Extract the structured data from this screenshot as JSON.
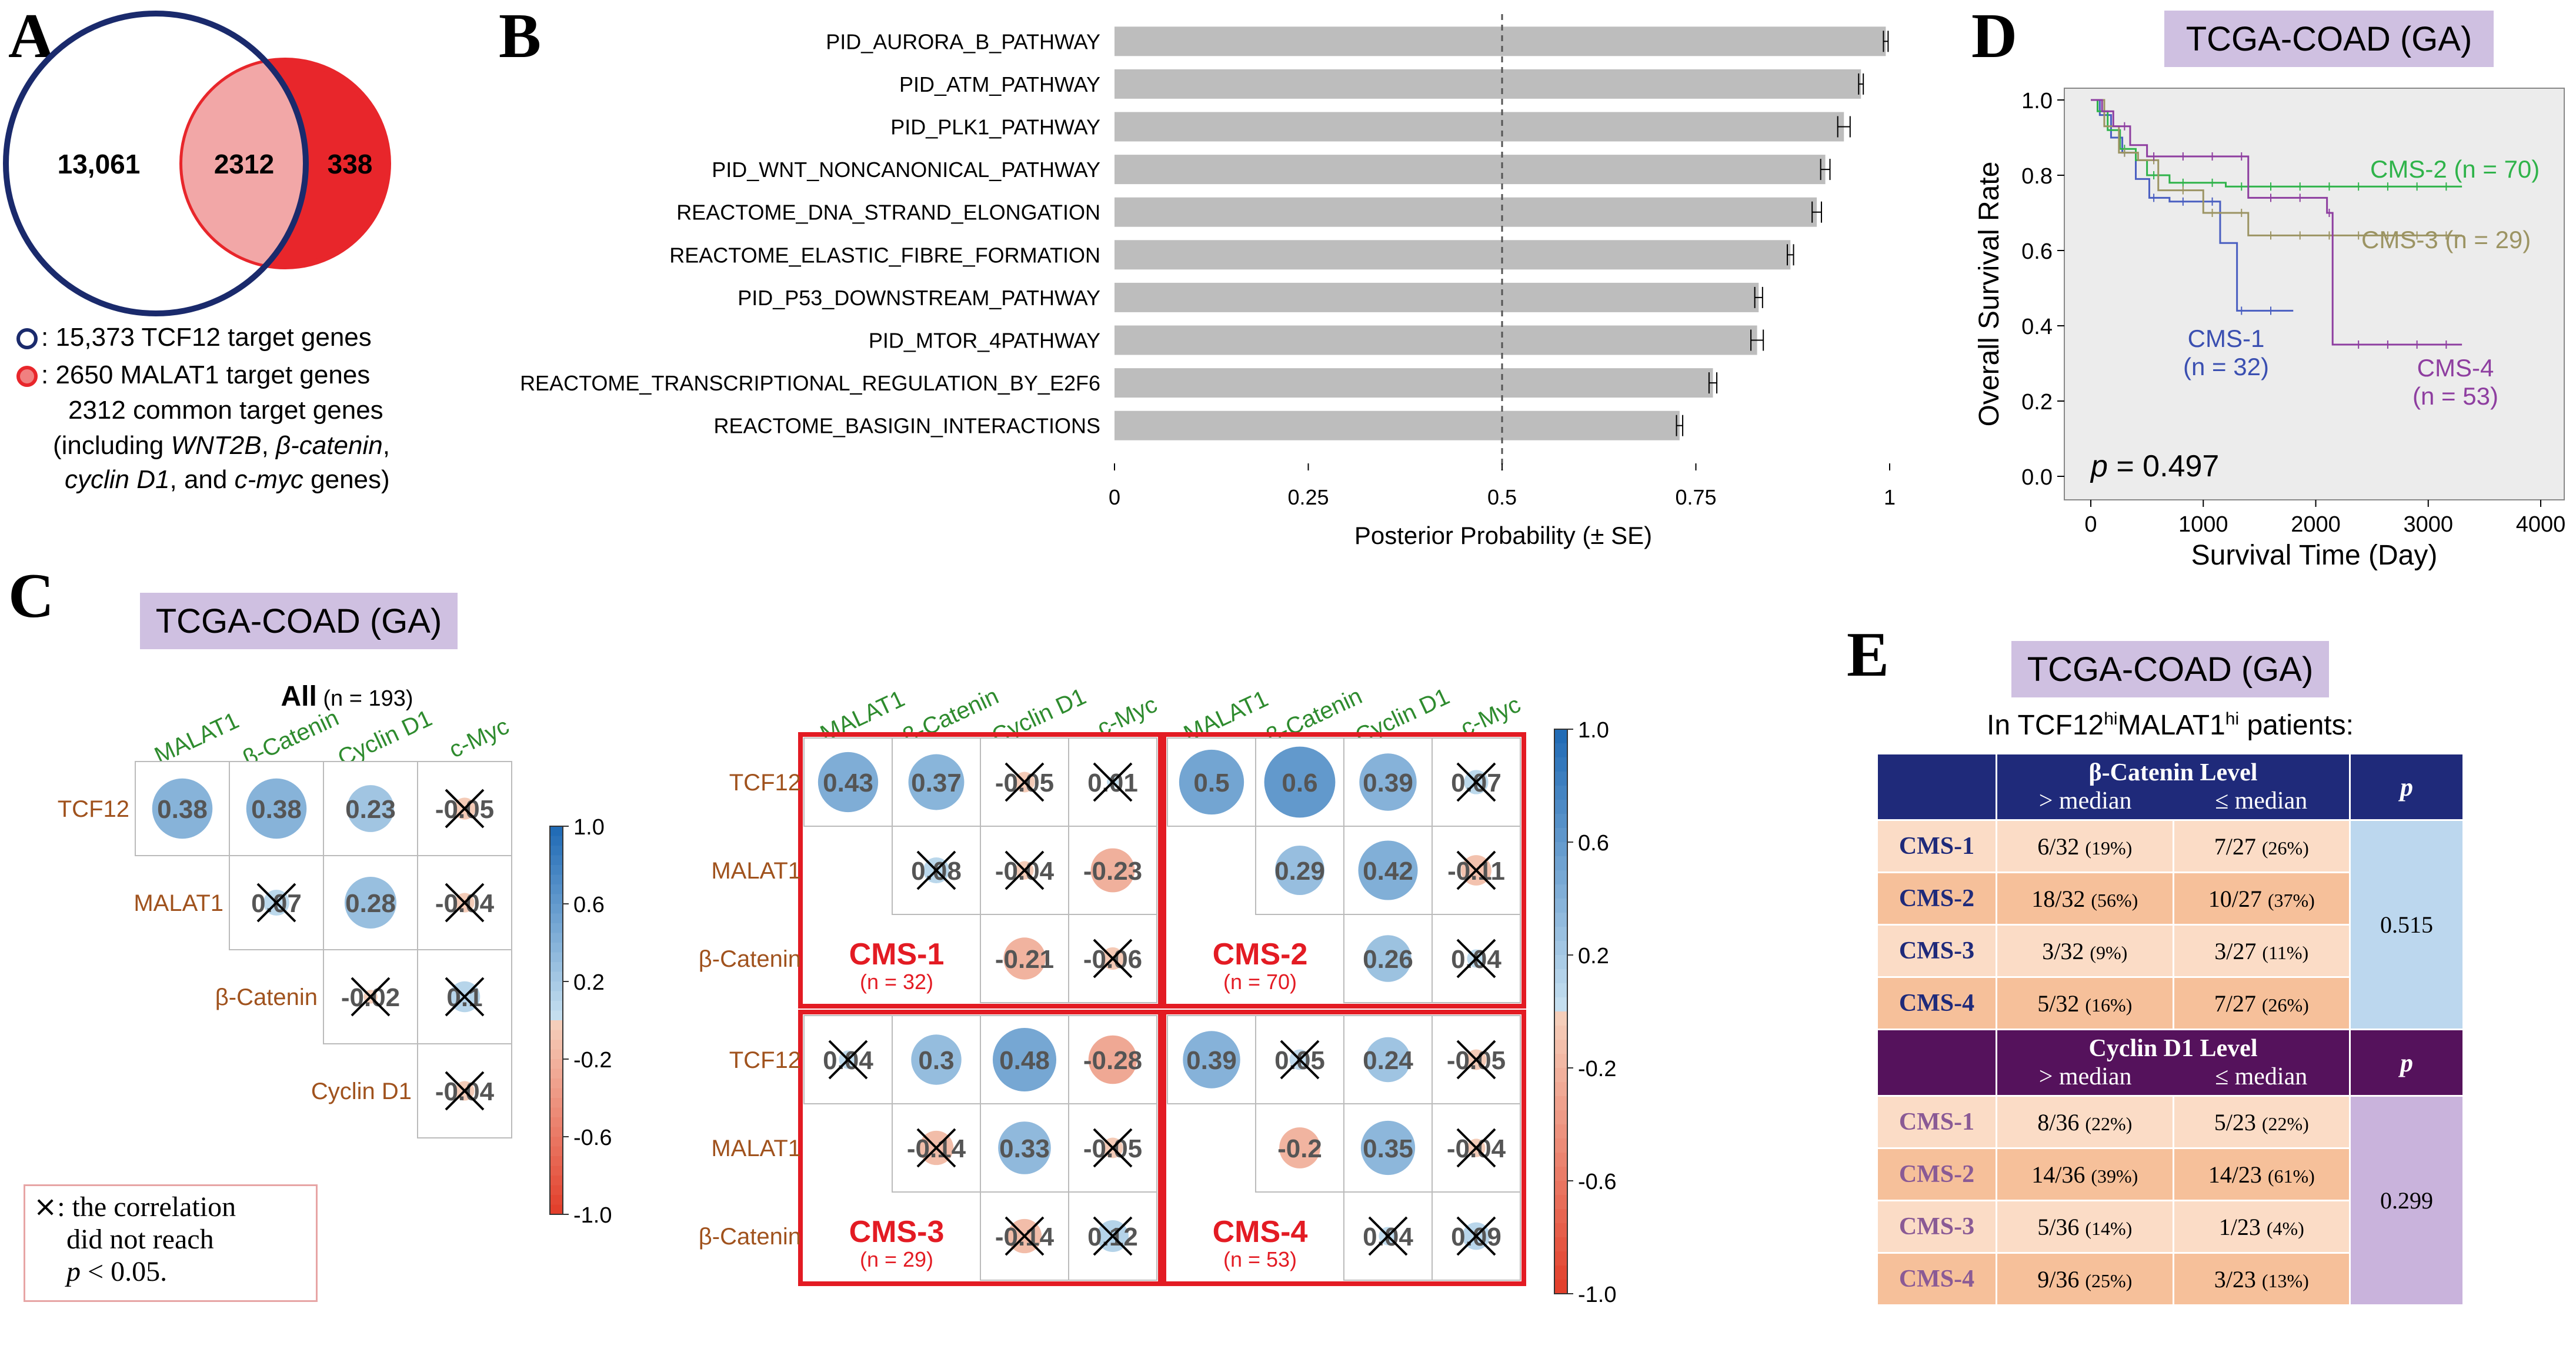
{
  "panels": {
    "a": "A",
    "b": "B",
    "c": "C",
    "d": "D",
    "e": "E"
  },
  "venn": {
    "left_only": "13,061",
    "overlap": "2312",
    "right_only": "338",
    "legend_tcf12": ": 15,373 TCF12 target genes",
    "legend_malat1": ": 2650 MALAT1 target genes",
    "common_line1": "2312 common target genes",
    "common_line2_a": "(including ",
    "common_line2_b": "WNT2B",
    "common_line2_c": ", ",
    "common_line2_d": "β-catenin",
    "common_line2_e": ",",
    "common_line3_a": "cyclin D1",
    "common_line3_b": ", and ",
    "common_line3_c": "c-myc",
    "common_line3_d": " genes)",
    "colors": {
      "tcf12": "#1a2a6c",
      "malat1": "#e8262b",
      "overlap": "#f2a7a7"
    }
  },
  "chart_data": {
    "type": "bar",
    "orientation": "horizontal",
    "categories": [
      "PID_AURORA_B_PATHWAY",
      "PID_ATM_PATHWAY",
      "PID_PLK1_PATHWAY",
      "PID_WNT_NONCANONICAL_PATHWAY",
      "REACTOME_DNA_STRAND_ELONGATION",
      "REACTOME_ELASTIC_FIBRE_FORMATION",
      "PID_P53_DOWNSTREAM_PATHWAY",
      "PID_MTOR_4PATHWAY",
      "REACTOME_TRANSCRIPTIONAL_REGULATION_BY_E2F6",
      "REACTOME_BASIGIN_INTERACTIONS"
    ],
    "values": [
      0.995,
      0.963,
      0.941,
      0.917,
      0.906,
      0.872,
      0.831,
      0.829,
      0.772,
      0.729
    ],
    "errors": [
      0.003,
      0.003,
      0.008,
      0.006,
      0.006,
      0.004,
      0.005,
      0.008,
      0.005,
      0.004
    ],
    "xlabel": "Posterior Probability (± SE)",
    "xlim": [
      0,
      1
    ],
    "xticks": [
      "0",
      "0.25",
      "0.5",
      "0.75",
      "1"
    ],
    "reference_line": 0.5,
    "bar_color": "#bdbdbd"
  },
  "survival": {
    "title": "TCGA-COAD (GA)",
    "ylabel": "Overall Survival Rate",
    "xlabel": "Survival Time (Day)",
    "yticks": [
      "0.0",
      "0.2",
      "0.4",
      "0.6",
      "0.8",
      "1.0"
    ],
    "xticks": [
      "0",
      "1000",
      "2000",
      "3000",
      "4000"
    ],
    "pvalue_p": "p",
    "pvalue_rest": " = 0.497",
    "groups": [
      {
        "name": "CMS-1",
        "n": "(n = 32)",
        "color": "#4a5fc1"
      },
      {
        "name": "CMS-2",
        "n": "(n = 70)",
        "color": "#2fb34a"
      },
      {
        "name": "CMS-3",
        "n": "(n = 29)",
        "color": "#9c9463"
      },
      {
        "name": "CMS-4",
        "n": "(n = 53)",
        "color": "#8e3ea0"
      }
    ]
  },
  "corr": {
    "title": "TCGA-COAD (GA)",
    "all_label": "All",
    "all_n": "(n = 193)",
    "col_labels": [
      "MALAT1",
      "β-Catenin",
      "Cyclin D1",
      "c-Myc"
    ],
    "row_labels": [
      "TCF12",
      "MALAT1",
      "β-Catenin",
      "Cyclin D1"
    ],
    "row_labels_cms": [
      "TCF12",
      "MALAT1",
      "β-Catenin"
    ],
    "all_values": [
      [
        "0.38",
        "0.38",
        "0.23",
        "-0.05"
      ],
      [
        "0.07",
        "0.28",
        "-0.04"
      ],
      [
        "-0.02",
        "0.1"
      ],
      [
        "-0.04"
      ]
    ],
    "colorbar_ticks": [
      "1.0",
      "0.6",
      "0.2",
      "-0.2",
      "-0.6",
      "-1.0"
    ],
    "cms": [
      {
        "label": "CMS-1",
        "n": "(n = 32)",
        "values": [
          [
            "0.43",
            "0.37",
            "-0.05",
            "0.01"
          ],
          [
            "0.08",
            "-0.04",
            "-0.23"
          ],
          [
            "-0.21",
            "-0.06"
          ]
        ]
      },
      {
        "label": "CMS-2",
        "n": "(n = 70)",
        "values": [
          [
            "0.5",
            "0.6",
            "0.39",
            "0.07"
          ],
          [
            "0.29",
            "0.42",
            "-0.11"
          ],
          [
            "0.26",
            "0.04"
          ]
        ]
      },
      {
        "label": "CMS-3",
        "n": "(n = 29)",
        "values": [
          [
            "0.04",
            "0.3",
            "0.48",
            "-0.28"
          ],
          [
            "-0.14",
            "0.33",
            "-0.05"
          ],
          [
            "-0.14",
            "0.12"
          ]
        ]
      },
      {
        "label": "CMS-4",
        "n": "(n = 53)",
        "values": [
          [
            "0.39",
            "0.05",
            "0.24",
            "-0.05"
          ],
          [
            "-0.2",
            "0.35",
            "-0.04"
          ],
          [
            "0.04",
            "0.09"
          ]
        ]
      }
    ],
    "note_line1": ": the correlation",
    "note_line2": "did not reach",
    "note_line3": "p < 0.05.",
    "colors": {
      "row_label": "#a0521d",
      "col_label": "#2e8b2e",
      "frame": "#e31b23"
    }
  },
  "table": {
    "title": "TCGA-COAD (GA)",
    "caption_a": "In TCF12",
    "caption_sup1": "hi",
    "caption_b": "MALAT1",
    "caption_sup2": "hi",
    "caption_c": " patients:",
    "beta_header": "β-Catenin Level",
    "cyclin_header": "Cyclin D1 Level",
    "gt_median": "> median",
    "le_median": "≤ median",
    "p_header": "p",
    "beta_rows": [
      {
        "cms": "CMS-1",
        "hi": "6/32",
        "hi_pct": "(19%)",
        "lo": "7/27",
        "lo_pct": "(26%)"
      },
      {
        "cms": "CMS-2",
        "hi": "18/32",
        "hi_pct": "(56%)",
        "lo": "10/27",
        "lo_pct": "(37%)"
      },
      {
        "cms": "CMS-3",
        "hi": "3/32",
        "hi_pct": "(9%)",
        "lo": "3/27",
        "lo_pct": "(11%)"
      },
      {
        "cms": "CMS-4",
        "hi": "5/32",
        "hi_pct": "(16%)",
        "lo": "7/27",
        "lo_pct": "(26%)"
      }
    ],
    "beta_p": "0.515",
    "cyclin_rows": [
      {
        "cms": "CMS-1",
        "hi": "8/36",
        "hi_pct": "(22%)",
        "lo": "5/23",
        "lo_pct": "(22%)"
      },
      {
        "cms": "CMS-2",
        "hi": "14/36",
        "hi_pct": "(39%)",
        "lo": "14/23",
        "lo_pct": "(61%)"
      },
      {
        "cms": "CMS-3",
        "hi": "5/36",
        "hi_pct": "(14%)",
        "lo": "1/23",
        "lo_pct": "(4%)"
      },
      {
        "cms": "CMS-4",
        "hi": "9/36",
        "hi_pct": "(25%)",
        "lo": "3/23",
        "lo_pct": "(13%)"
      }
    ],
    "cyclin_p": "0.299",
    "row_colors": [
      "#fbdcc6",
      "#f6c09a",
      "#fbdcc6",
      "#f6c09a"
    ]
  }
}
